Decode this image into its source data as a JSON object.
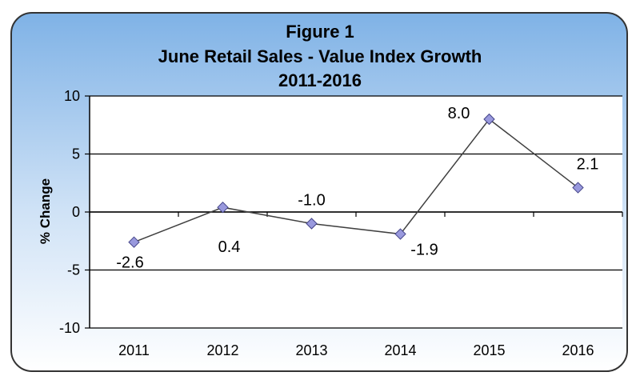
{
  "chart_data": {
    "type": "line",
    "title_lines": [
      "Figure 1",
      "June Retail Sales - Value Index Growth",
      "2011-2016"
    ],
    "xlabel": "",
    "ylabel": "% Change",
    "categories": [
      "2011",
      "2012",
      "2013",
      "2014",
      "2015",
      "2016"
    ],
    "series": [
      {
        "values": [
          -2.6,
          0.4,
          -1.0,
          -1.9,
          8.0,
          2.1
        ]
      }
    ],
    "data_labels": [
      "-2.6",
      "0.4",
      "-1.0",
      "-1.9",
      "8.0",
      "2.1"
    ],
    "ylim": [
      -10,
      10
    ],
    "yticks": [
      10,
      5,
      0,
      -5,
      -10
    ],
    "grid": true,
    "legend": "none",
    "colors": {
      "line": "#404040",
      "marker_fill": "#9999dd",
      "marker_stroke": "#444488",
      "frame_stroke": "#333333",
      "background_top": "#7fb2e6",
      "background_bottom": "#ffffff",
      "plot_bg": "#ffffff"
    }
  }
}
